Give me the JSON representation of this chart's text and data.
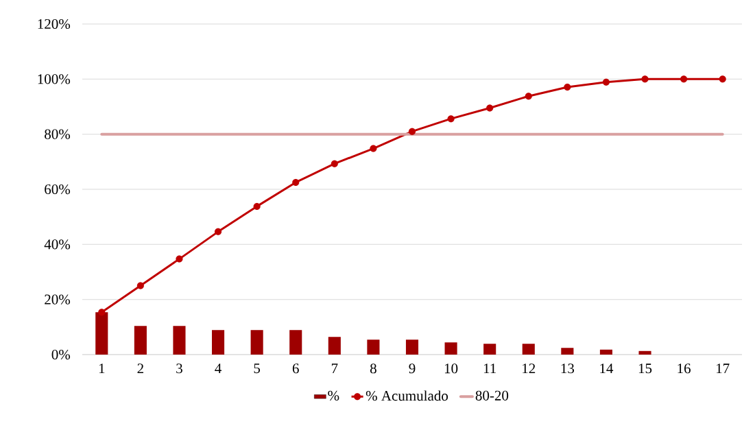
{
  "chart_data": {
    "type": "bar",
    "categories": [
      "1",
      "2",
      "3",
      "4",
      "5",
      "6",
      "7",
      "8",
      "9",
      "10",
      "11",
      "12",
      "13",
      "14",
      "15",
      "16",
      "17"
    ],
    "series": [
      {
        "name": "%",
        "color": "#9e0000",
        "values": [
          15.4,
          10.4,
          10.4,
          8.9,
          8.9,
          8.9,
          6.4,
          5.4,
          5.4,
          4.4,
          3.9,
          3.9,
          2.4,
          1.8,
          1.3,
          0,
          0
        ]
      },
      {
        "name": "% Acumulado",
        "type": "line",
        "marker": "circle",
        "color": "#c00000",
        "values": [
          15.4,
          25,
          34.7,
          44.6,
          53.8,
          62.5,
          69.3,
          74.8,
          81,
          85.6,
          89.5,
          93.8,
          97.1,
          98.9,
          100,
          100,
          100
        ]
      },
      {
        "name": "80-20",
        "type": "line",
        "marker": "none",
        "color": "#d9a0a0",
        "values": [
          80,
          80,
          80,
          80,
          80,
          80,
          80,
          80,
          80,
          80,
          80,
          80,
          80,
          80,
          80,
          80,
          80
        ]
      }
    ],
    "ylim": [
      0,
      120
    ],
    "yticks": [
      {
        "value": 0,
        "label": "0%"
      },
      {
        "value": 20,
        "label": "20%"
      },
      {
        "value": 40,
        "label": "40%"
      },
      {
        "value": 60,
        "label": "60%"
      },
      {
        "value": 80,
        "label": "80%"
      },
      {
        "value": 100,
        "label": "100%"
      },
      {
        "value": 120,
        "label": "120%"
      }
    ],
    "grid": "y",
    "legend": "bottom"
  }
}
